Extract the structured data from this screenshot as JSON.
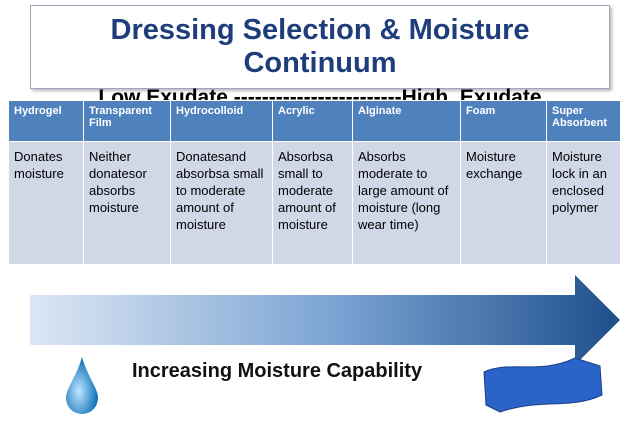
{
  "header": {
    "title": "Dressing Selection & Moisture Continuum",
    "subtitle": "Low Exudate ------------------------High  Exudate"
  },
  "table": {
    "columns": [
      "Hydrogel",
      "Transparent Film",
      "Hydrocolloid",
      "Acrylic",
      "Alginate",
      "Foam",
      "Super Absorbent"
    ],
    "rows": [
      [
        "Donates moisture",
        "Neither donatesor absorbs moisture",
        "Donatesand absorbsa small to moderate amount of moisture",
        "Absorbsa small to moderate amount of moisture",
        "Absorbs moderate to large amount of moisture (long wear time)",
        "Moisture exchange",
        "Moisture lock in an enclosed polymer"
      ]
    ]
  },
  "footer": {
    "label": "Increasing Moisture Capability"
  }
}
